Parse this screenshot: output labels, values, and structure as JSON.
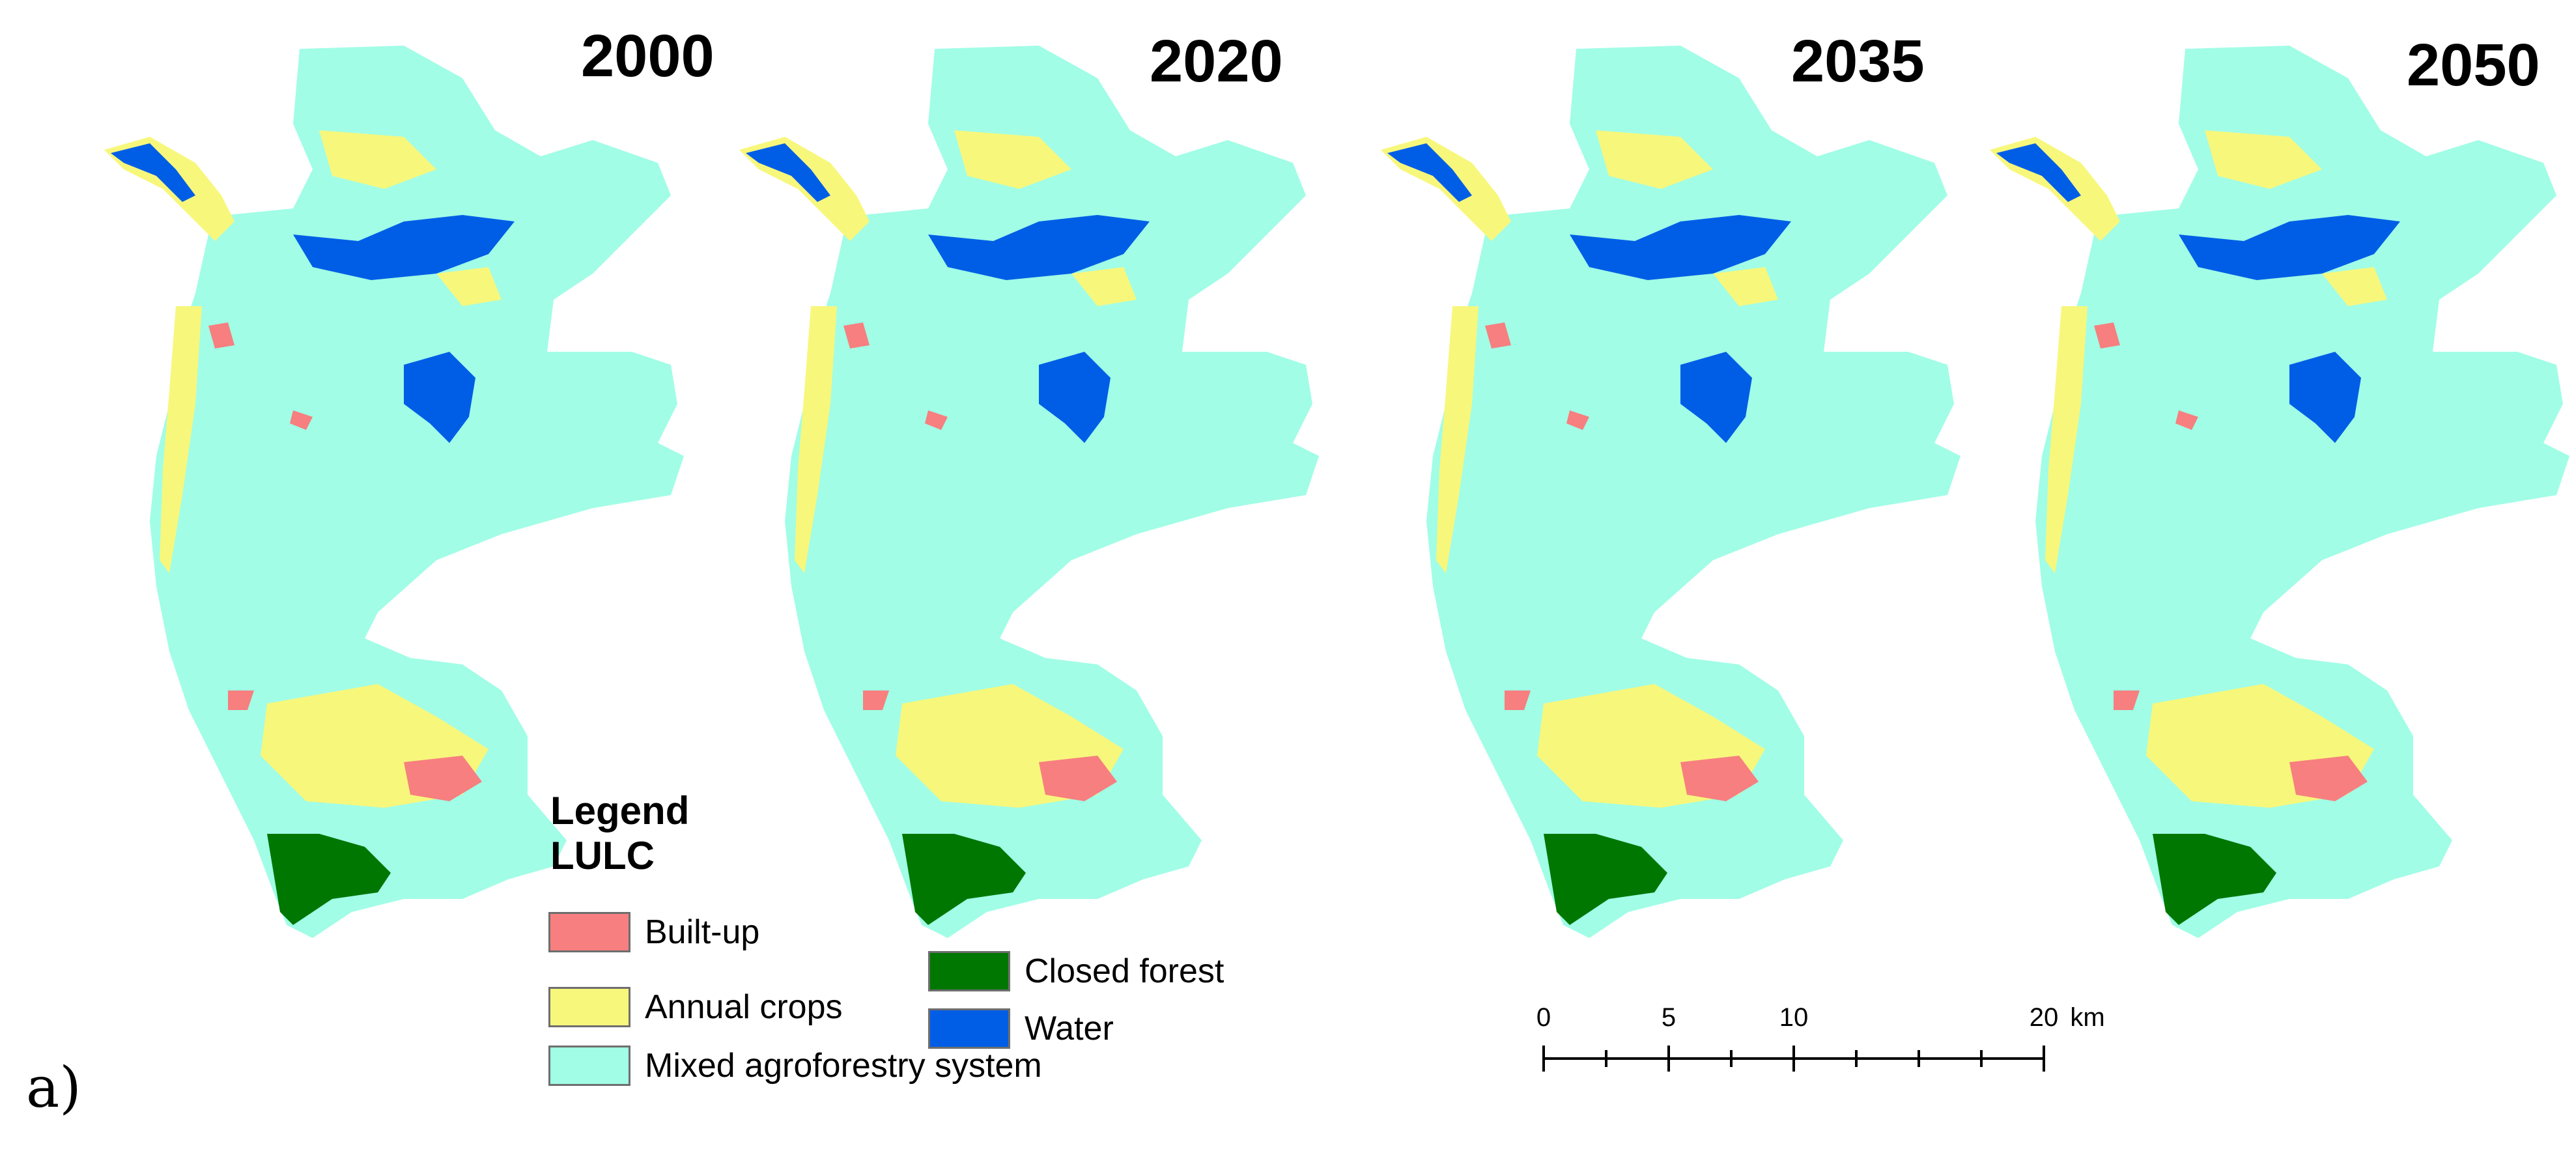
{
  "panel_label": "a)",
  "maps": [
    {
      "year": "2000"
    },
    {
      "year": "2020"
    },
    {
      "year": "2035"
    },
    {
      "year": "2050"
    }
  ],
  "legend": {
    "title_line1": "Legend",
    "title_line2": "LULC",
    "items": [
      {
        "label": "Built-up",
        "color": "#f77f7f"
      },
      {
        "label": "Annual crops",
        "color": "#f7f77c"
      },
      {
        "label": "Mixed agroforestry system",
        "color": "#a1fde6"
      },
      {
        "label": "Closed forest",
        "color": "#007700"
      },
      {
        "label": "Water",
        "color": "#005ee6"
      }
    ]
  },
  "scale_bar": {
    "labels": [
      "0",
      "5",
      "10",
      "20"
    ],
    "unit": "km"
  }
}
